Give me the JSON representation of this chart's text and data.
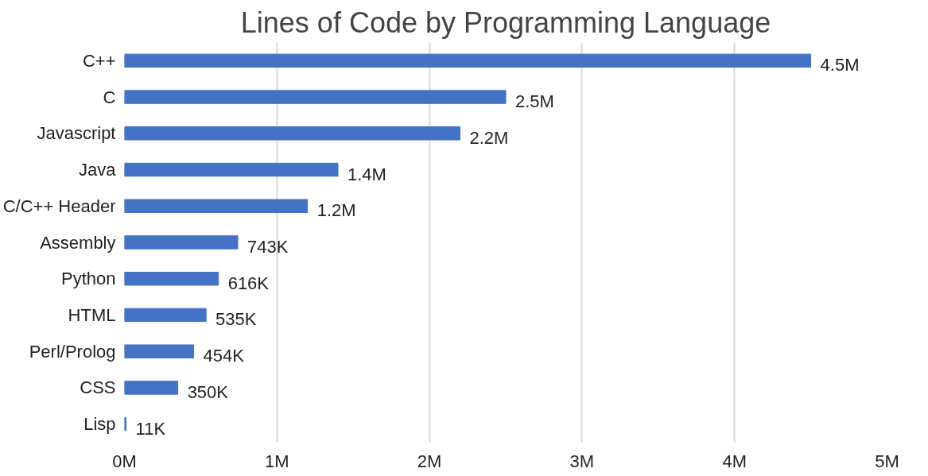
{
  "chart_data": {
    "type": "bar",
    "orientation": "horizontal",
    "title": "Lines of Code by Programming Language",
    "categories": [
      "C++",
      "C",
      "Javascript",
      "Java",
      "C/C++ Header",
      "Assembly",
      "Python",
      "HTML",
      "Perl/Prolog",
      "CSS",
      "Lisp"
    ],
    "values": [
      4500000,
      2500000,
      2200000,
      1400000,
      1200000,
      743000,
      616000,
      535000,
      454000,
      350000,
      11000
    ],
    "value_labels": [
      "4.5M",
      "2.5M",
      "2.2M",
      "1.4M",
      "1.2M",
      "743K",
      "616K",
      "535K",
      "454K",
      "350K",
      "11K"
    ],
    "color": "#4472c4",
    "xlim": [
      0,
      5000000
    ],
    "xticks": [
      {
        "value": 0,
        "label": "0M"
      },
      {
        "value": 1000000,
        "label": "1M"
      },
      {
        "value": 2000000,
        "label": "2M"
      },
      {
        "value": 3000000,
        "label": "3M"
      },
      {
        "value": 4000000,
        "label": "4M"
      },
      {
        "value": 5000000,
        "label": "5M"
      }
    ],
    "grid": "x"
  }
}
